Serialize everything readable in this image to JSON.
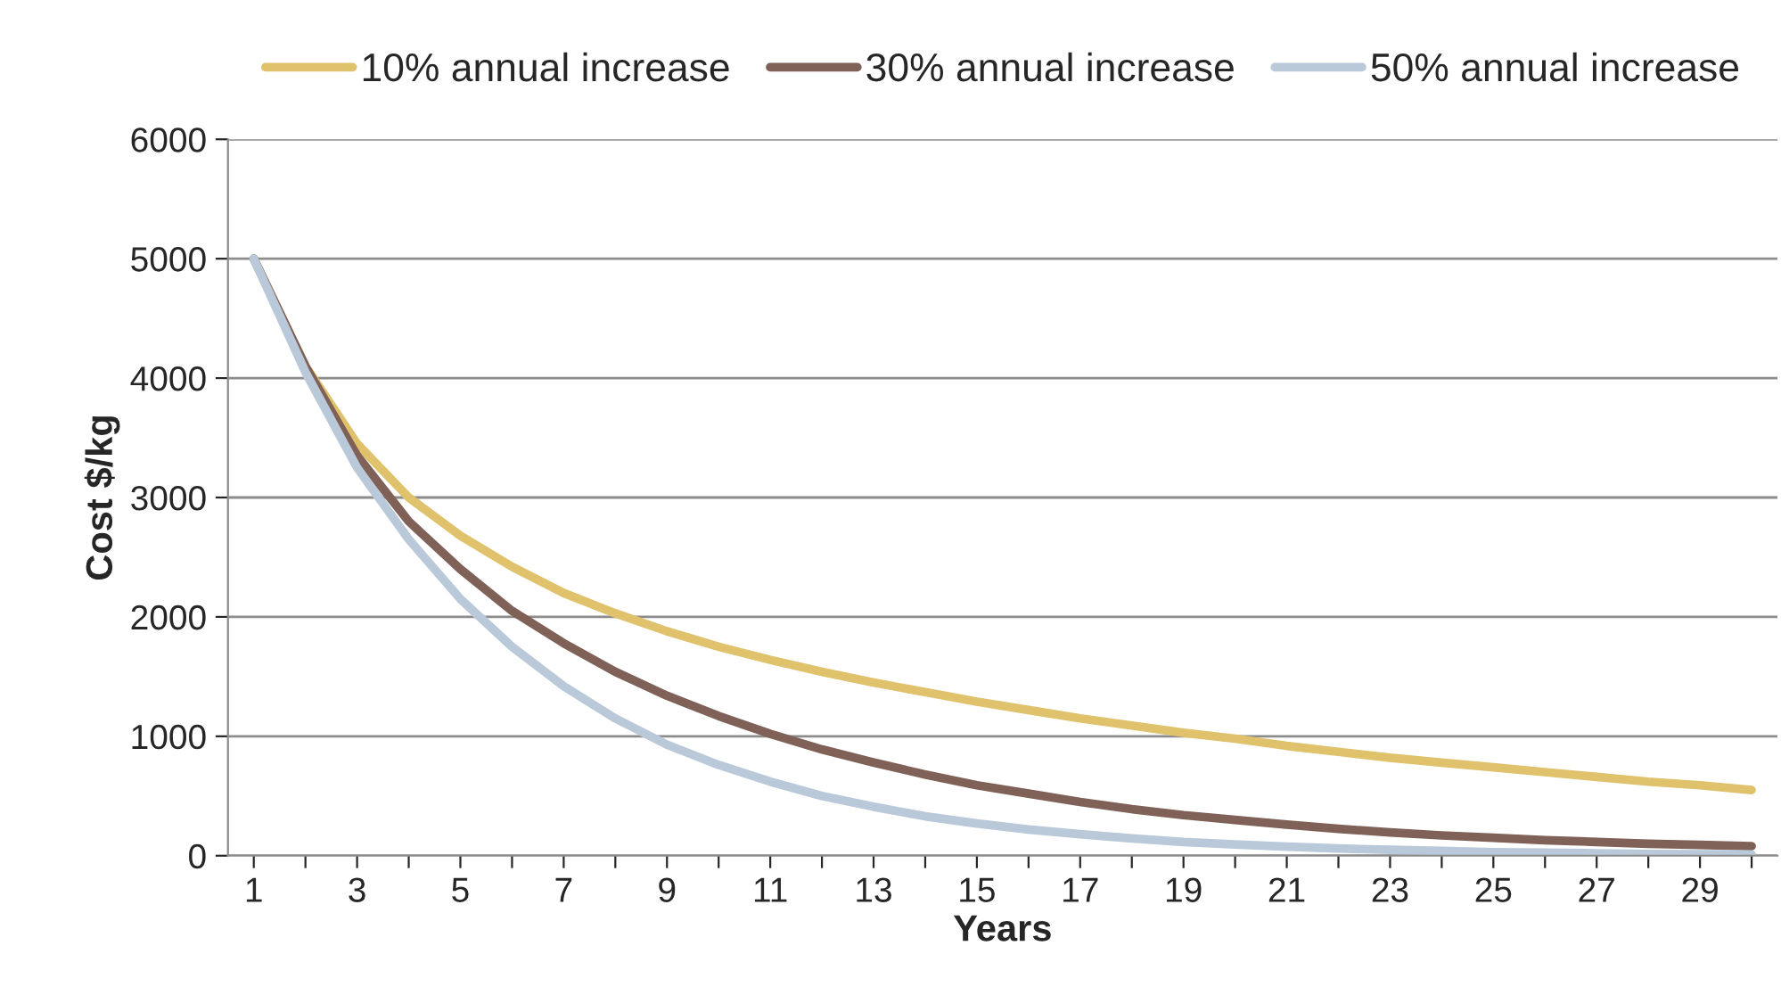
{
  "chart_data": {
    "type": "line",
    "xlabel": "Years",
    "ylabel": "Cost $/kg",
    "categories": [
      "1",
      null,
      "3",
      null,
      "5",
      null,
      "7",
      null,
      "9",
      null,
      "11",
      null,
      "13",
      null,
      "15",
      null,
      "17",
      null,
      "19",
      null,
      "21",
      null,
      "23",
      null,
      "25",
      null,
      "27",
      null,
      "29",
      null
    ],
    "series": [
      {
        "name": "10% annual increase",
        "color": "#e0c26c",
        "values": [
          5000,
          4100,
          3450,
          3000,
          2680,
          2420,
          2200,
          2030,
          1880,
          1750,
          1640,
          1540,
          1450,
          1370,
          1290,
          1220,
          1150,
          1090,
          1030,
          980,
          920,
          870,
          820,
          780,
          740,
          700,
          660,
          620,
          590,
          550
        ]
      },
      {
        "name": "30% annual increase",
        "color": "#7f6158",
        "values": [
          5000,
          4100,
          3350,
          2800,
          2400,
          2050,
          1780,
          1540,
          1340,
          1170,
          1020,
          890,
          780,
          680,
          590,
          520,
          450,
          390,
          340,
          300,
          260,
          225,
          195,
          170,
          150,
          130,
          115,
          100,
          90,
          80
        ]
      },
      {
        "name": "50% annual increase",
        "color": "#bac9d9",
        "values": [
          5000,
          4050,
          3250,
          2650,
          2150,
          1750,
          1420,
          1150,
          930,
          760,
          620,
          500,
          410,
          330,
          270,
          220,
          180,
          145,
          115,
          95,
          75,
          60,
          50,
          40,
          30,
          25,
          20,
          15,
          12,
          10
        ]
      }
    ],
    "ylim": [
      0,
      6000
    ],
    "yticks": [
      0,
      1000,
      2000,
      3000,
      4000,
      5000,
      6000
    ],
    "grid": "y",
    "legend": "top",
    "marker": "none",
    "line_style": "solid"
  }
}
